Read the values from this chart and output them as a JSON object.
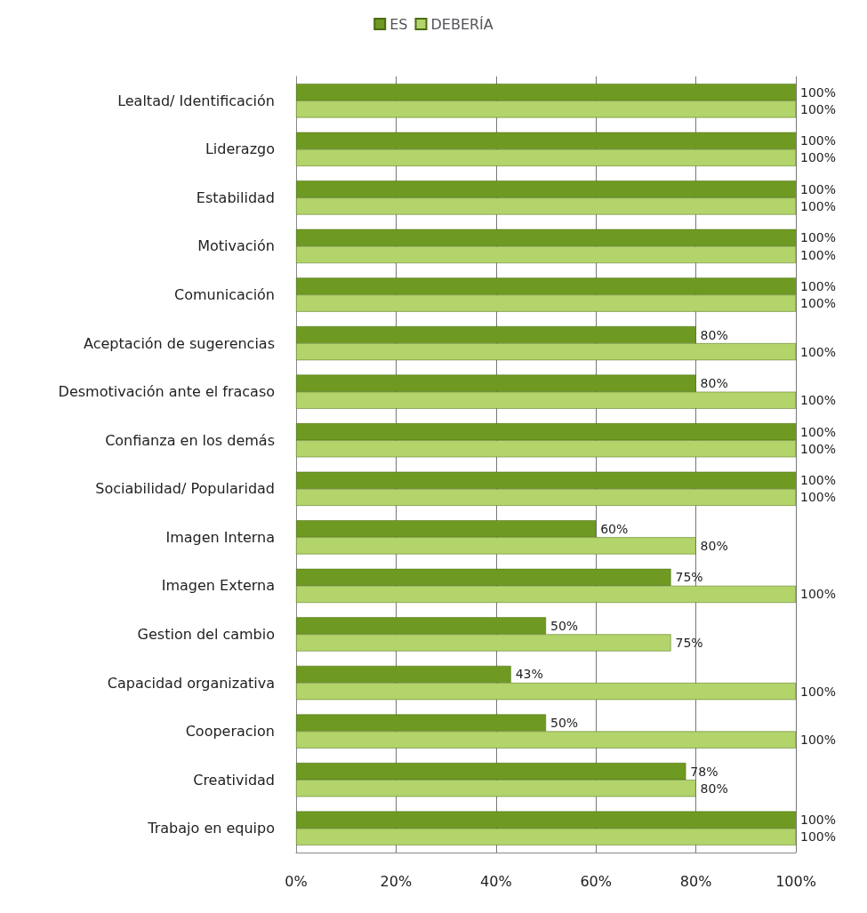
{
  "chart_data": {
    "type": "bar",
    "orientation": "horizontal",
    "categories": [
      "Lealtad/ Identificación",
      "Liderazgo",
      "Estabilidad",
      "Motivación",
      "Comunicación",
      "Aceptación de sugerencias",
      "Desmotivación ante el fracaso",
      "Confianza en los demás",
      "Sociabilidad/ Popularidad",
      "Imagen Interna",
      "Imagen Externa",
      "Gestion del cambio",
      "Capacidad organizativa",
      "Cooperacion",
      "Creatividad",
      "Trabajo en equipo"
    ],
    "series": [
      {
        "name": "ES",
        "color": "#6e9a22",
        "values": [
          100,
          100,
          100,
          100,
          100,
          80,
          80,
          100,
          100,
          60,
          75,
          50,
          43,
          50,
          78,
          100
        ],
        "value_labels": [
          "100%",
          "100%",
          "100%",
          "100%",
          "100%",
          "80%",
          "80%",
          "100%",
          "100%",
          "60%",
          "75%",
          "50%",
          "43%",
          "50%",
          "78%",
          "100%"
        ]
      },
      {
        "name": "DEBERÍA",
        "color": "#b3d46a",
        "values": [
          100,
          100,
          100,
          100,
          100,
          100,
          100,
          100,
          100,
          80,
          100,
          75,
          100,
          100,
          80,
          100
        ],
        "value_labels": [
          "100%",
          "100%",
          "100%",
          "100%",
          "100%",
          "100%",
          "100%",
          "100%",
          "100%",
          "80%",
          "100%",
          "75%",
          "100%",
          "100%",
          "80%",
          "100%"
        ]
      }
    ],
    "xlim": [
      0,
      100
    ],
    "xticks": [
      {
        "value": 0,
        "label": "0%"
      },
      {
        "value": 20,
        "label": "20%"
      },
      {
        "value": 40,
        "label": "40%"
      },
      {
        "value": 60,
        "label": "60%"
      },
      {
        "value": 80,
        "label": "80%"
      },
      {
        "value": 100,
        "label": "100%"
      }
    ],
    "grid": "x",
    "legend": "top"
  }
}
